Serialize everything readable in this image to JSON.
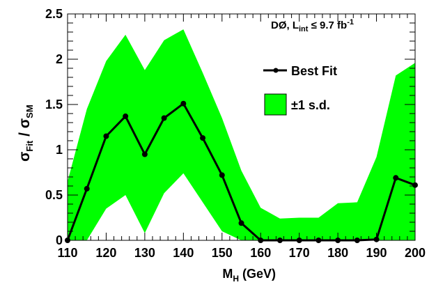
{
  "chart_data": {
    "type": "line",
    "header": {
      "experiment": "DØ, L",
      "lumi_sub": "int",
      "lumi_rel": " ≤ 9.7 fb",
      "lumi_sup": "-1"
    },
    "xlabel": {
      "main": "M",
      "sub": "H",
      "rest": " (GeV)"
    },
    "ylabel": {
      "s1": "σ",
      "s1_sub": "Fit",
      "sep": " / ",
      "s2": "σ",
      "s2_sub": "SM"
    },
    "xlim": [
      110,
      200
    ],
    "ylim": [
      0,
      2.5
    ],
    "x_ticks": [
      110,
      120,
      130,
      140,
      150,
      160,
      170,
      180,
      190,
      200
    ],
    "x_tick_labels": [
      "110",
      "120",
      "130",
      "140",
      "150",
      "160",
      "170",
      "180",
      "190",
      "200"
    ],
    "y_ticks": [
      0,
      0.5,
      1,
      1.5,
      2,
      2.5
    ],
    "y_tick_labels": [
      "0",
      "0.5",
      "1",
      "1.5",
      "2",
      "2.5"
    ],
    "legend_position": "top-right",
    "series": [
      {
        "name": "Best Fit",
        "color": "#000000",
        "x": [
          110,
          115,
          120,
          125,
          130,
          135,
          140,
          145,
          150,
          155,
          160,
          165,
          170,
          175,
          180,
          185,
          190,
          195,
          200
        ],
        "values": [
          0.0,
          0.57,
          1.15,
          1.37,
          0.95,
          1.35,
          1.51,
          1.13,
          0.72,
          0.19,
          0.0,
          0.0,
          0.0,
          0.0,
          0.0,
          0.0,
          0.01,
          0.69,
          0.61
        ]
      },
      {
        "name": "±1 s.d.",
        "color": "#00ff00",
        "x": [
          110,
          115,
          120,
          125,
          130,
          135,
          140,
          145,
          150,
          155,
          160,
          165,
          170,
          175,
          180,
          185,
          190,
          195,
          200
        ],
        "upper": [
          0.65,
          1.45,
          1.98,
          2.27,
          1.88,
          2.21,
          2.33,
          1.85,
          1.35,
          0.77,
          0.36,
          0.24,
          0.25,
          0.25,
          0.41,
          0.42,
          0.92,
          1.82,
          1.96
        ],
        "lower": [
          0.0,
          0.0,
          0.35,
          0.5,
          0.08,
          0.52,
          0.74,
          0.42,
          0.1,
          0.0,
          0.0,
          0.0,
          0.0,
          0.0,
          0.0,
          0.0,
          0.0,
          0.0,
          0.0
        ]
      }
    ]
  }
}
